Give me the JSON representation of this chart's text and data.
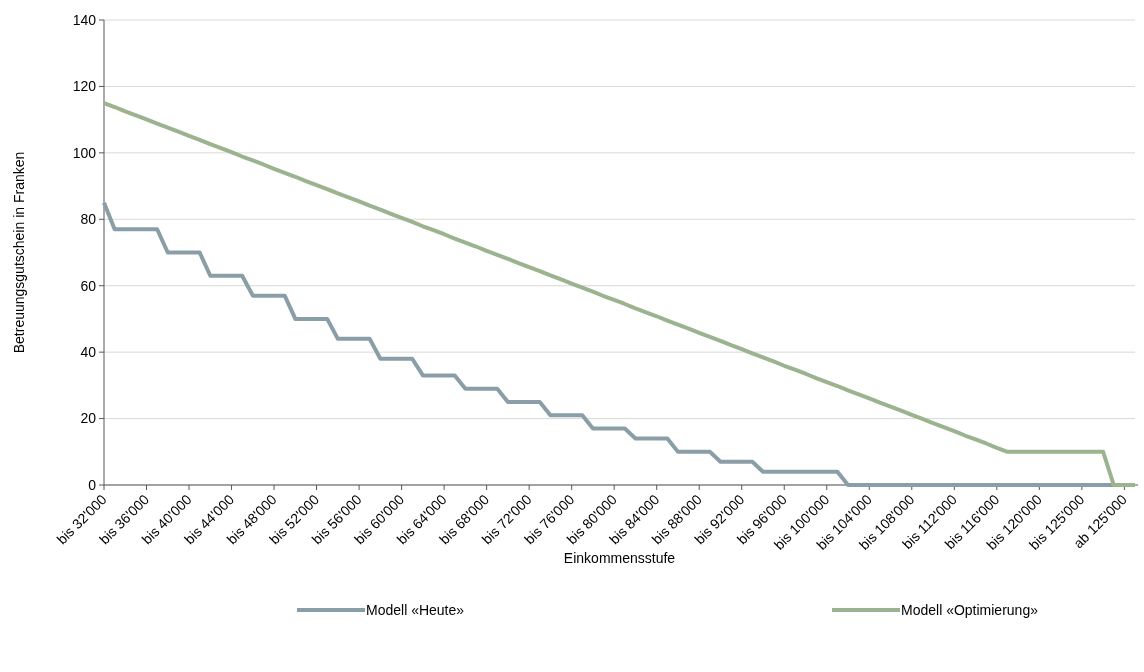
{
  "chart_data": {
    "type": "line",
    "xlabel": "Einkommensstufe",
    "ylabel": "Betreuungsgutschein in Franken",
    "categories": [
      "bis 32'000",
      null,
      null,
      null,
      "bis 36'000",
      null,
      null,
      null,
      "bis 40'000",
      null,
      null,
      null,
      "bis 44'000",
      null,
      null,
      null,
      "bis 48'000",
      null,
      null,
      null,
      "bis 52'000",
      null,
      null,
      null,
      "bis 56'000",
      null,
      null,
      null,
      "bis 60'000",
      null,
      null,
      null,
      "bis 64'000",
      null,
      null,
      null,
      "bis 68'000",
      null,
      null,
      null,
      "bis 72'000",
      null,
      null,
      null,
      "bis 76'000",
      null,
      null,
      null,
      "bis 80'000",
      null,
      null,
      null,
      "bis 84'000",
      null,
      null,
      null,
      "bis 88'000",
      null,
      null,
      null,
      "bis 92'000",
      null,
      null,
      null,
      "bis 96'000",
      null,
      null,
      null,
      "bis 100'000",
      null,
      null,
      null,
      "bis 104'000",
      null,
      null,
      null,
      "bis 108'000",
      null,
      null,
      null,
      "bis 112'000",
      null,
      null,
      null,
      "bis 116'000",
      null,
      null,
      null,
      "bis 120'000",
      null,
      null,
      null,
      "bis 125'000",
      null,
      null,
      null,
      "ab 125'000",
      null
    ],
    "series": [
      {
        "name": "Modell «Heute»",
        "color": "#8a9ea8",
        "values": [
          85,
          77,
          77,
          77,
          77,
          77,
          70,
          70,
          70,
          70,
          63,
          63,
          63,
          63,
          57,
          57,
          57,
          57,
          50,
          50,
          50,
          50,
          44,
          44,
          44,
          44,
          38,
          38,
          38,
          38,
          33,
          33,
          33,
          33,
          29,
          29,
          29,
          29,
          25,
          25,
          25,
          25,
          21,
          21,
          21,
          21,
          17,
          17,
          17,
          17,
          14,
          14,
          14,
          14,
          10,
          10,
          10,
          10,
          7,
          7,
          7,
          7,
          4,
          4,
          4,
          4,
          4,
          4,
          4,
          4,
          0,
          0,
          0,
          0,
          0,
          0,
          0,
          0,
          0,
          0,
          0,
          0,
          0,
          0,
          0,
          0,
          0,
          0,
          0,
          0,
          0,
          0,
          0,
          0,
          0,
          0,
          0,
          0
        ]
      },
      {
        "name": "Modell «Optimierung»",
        "color": "#9bb38e",
        "values": [
          115,
          113.8,
          112.5,
          111.3,
          110.1,
          108.8,
          107.6,
          106.4,
          105.1,
          103.9,
          102.6,
          101.4,
          100.2,
          98.9,
          97.7,
          96.5,
          95.2,
          94.0,
          92.8,
          91.5,
          90.3,
          89.1,
          87.8,
          86.6,
          85.4,
          84.1,
          82.9,
          81.6,
          80.4,
          79.2,
          77.9,
          76.7,
          75.5,
          74.2,
          73.0,
          71.8,
          70.5,
          69.3,
          68.1,
          66.8,
          65.6,
          64.4,
          63.1,
          61.9,
          60.6,
          59.4,
          58.2,
          56.9,
          55.7,
          54.5,
          53.2,
          52.0,
          50.8,
          49.5,
          48.3,
          47.1,
          45.8,
          44.6,
          43.4,
          42.1,
          40.9,
          39.6,
          38.4,
          37.2,
          35.9,
          34.7,
          33.5,
          32.2,
          31.0,
          29.8,
          28.5,
          27.3,
          26.1,
          24.8,
          23.6,
          22.4,
          21.1,
          19.9,
          18.6,
          17.4,
          16.2,
          14.9,
          13.7,
          12.5,
          11.2,
          10,
          10,
          10,
          10,
          10,
          10,
          10,
          10,
          10,
          10,
          0,
          0,
          0
        ]
      }
    ],
    "ylim": [
      0,
      140
    ],
    "yticks": [
      0,
      20,
      40,
      60,
      80,
      100,
      120,
      140
    ],
    "grid": "y",
    "legend": "bottom",
    "marker": "none",
    "line_style": "solid"
  }
}
